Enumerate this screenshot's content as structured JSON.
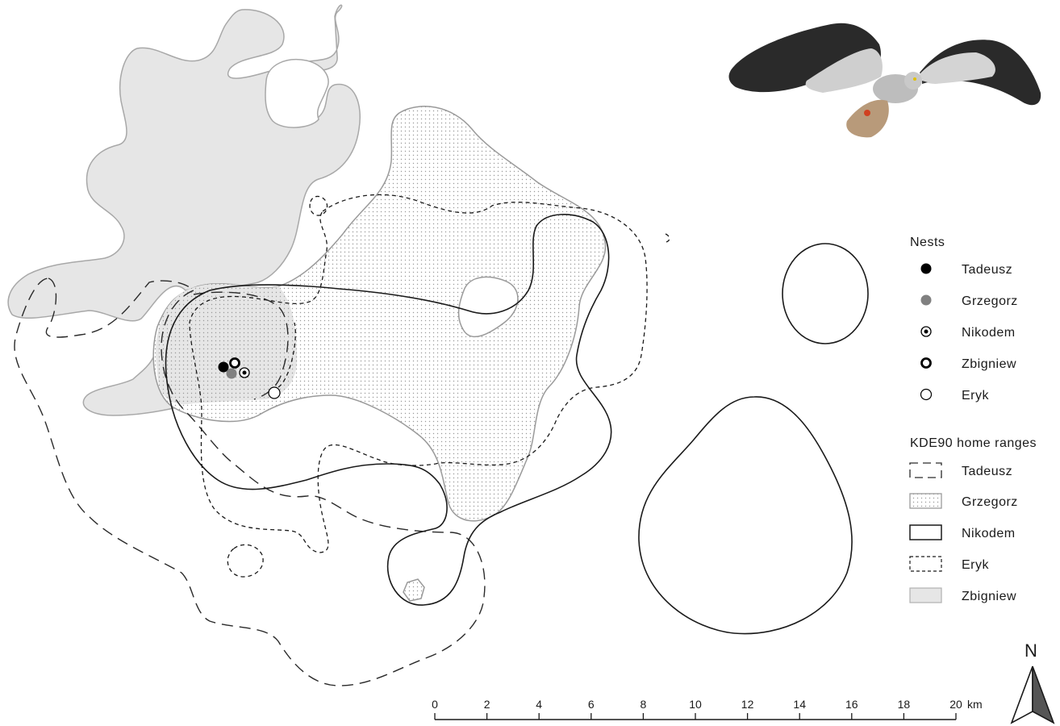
{
  "legend": {
    "nests_title": "Nests",
    "nests": [
      {
        "label": "Tadeusz",
        "symbol": "filled-black-circle",
        "color": "#000000"
      },
      {
        "label": "Grzegorz",
        "symbol": "filled-grey-circle",
        "color": "#808080"
      },
      {
        "label": "Nikodem",
        "symbol": "dotted-circle"
      },
      {
        "label": "Zbigniew",
        "symbol": "thick-ring"
      },
      {
        "label": "Eryk",
        "symbol": "hollow-circle"
      }
    ],
    "ranges_title": "KDE90 home ranges",
    "ranges": [
      {
        "label": "Tadeusz",
        "style": "long-dash outline"
      },
      {
        "label": "Grzegorz",
        "style": "dotted fill"
      },
      {
        "label": "Nikodem",
        "style": "solid outline"
      },
      {
        "label": "Eryk",
        "style": "short-dash outline"
      },
      {
        "label": "Zbigniew",
        "style": "light grey fill",
        "color": "#e6e6e6"
      }
    ]
  },
  "scale_bar": {
    "ticks": [
      "0",
      "2",
      "4",
      "6",
      "8",
      "10",
      "12",
      "14",
      "16",
      "18",
      "20"
    ],
    "unit": "km"
  },
  "north_arrow": {
    "label": "N"
  },
  "photo": {
    "subject": "harrier-bird-in-flight"
  }
}
